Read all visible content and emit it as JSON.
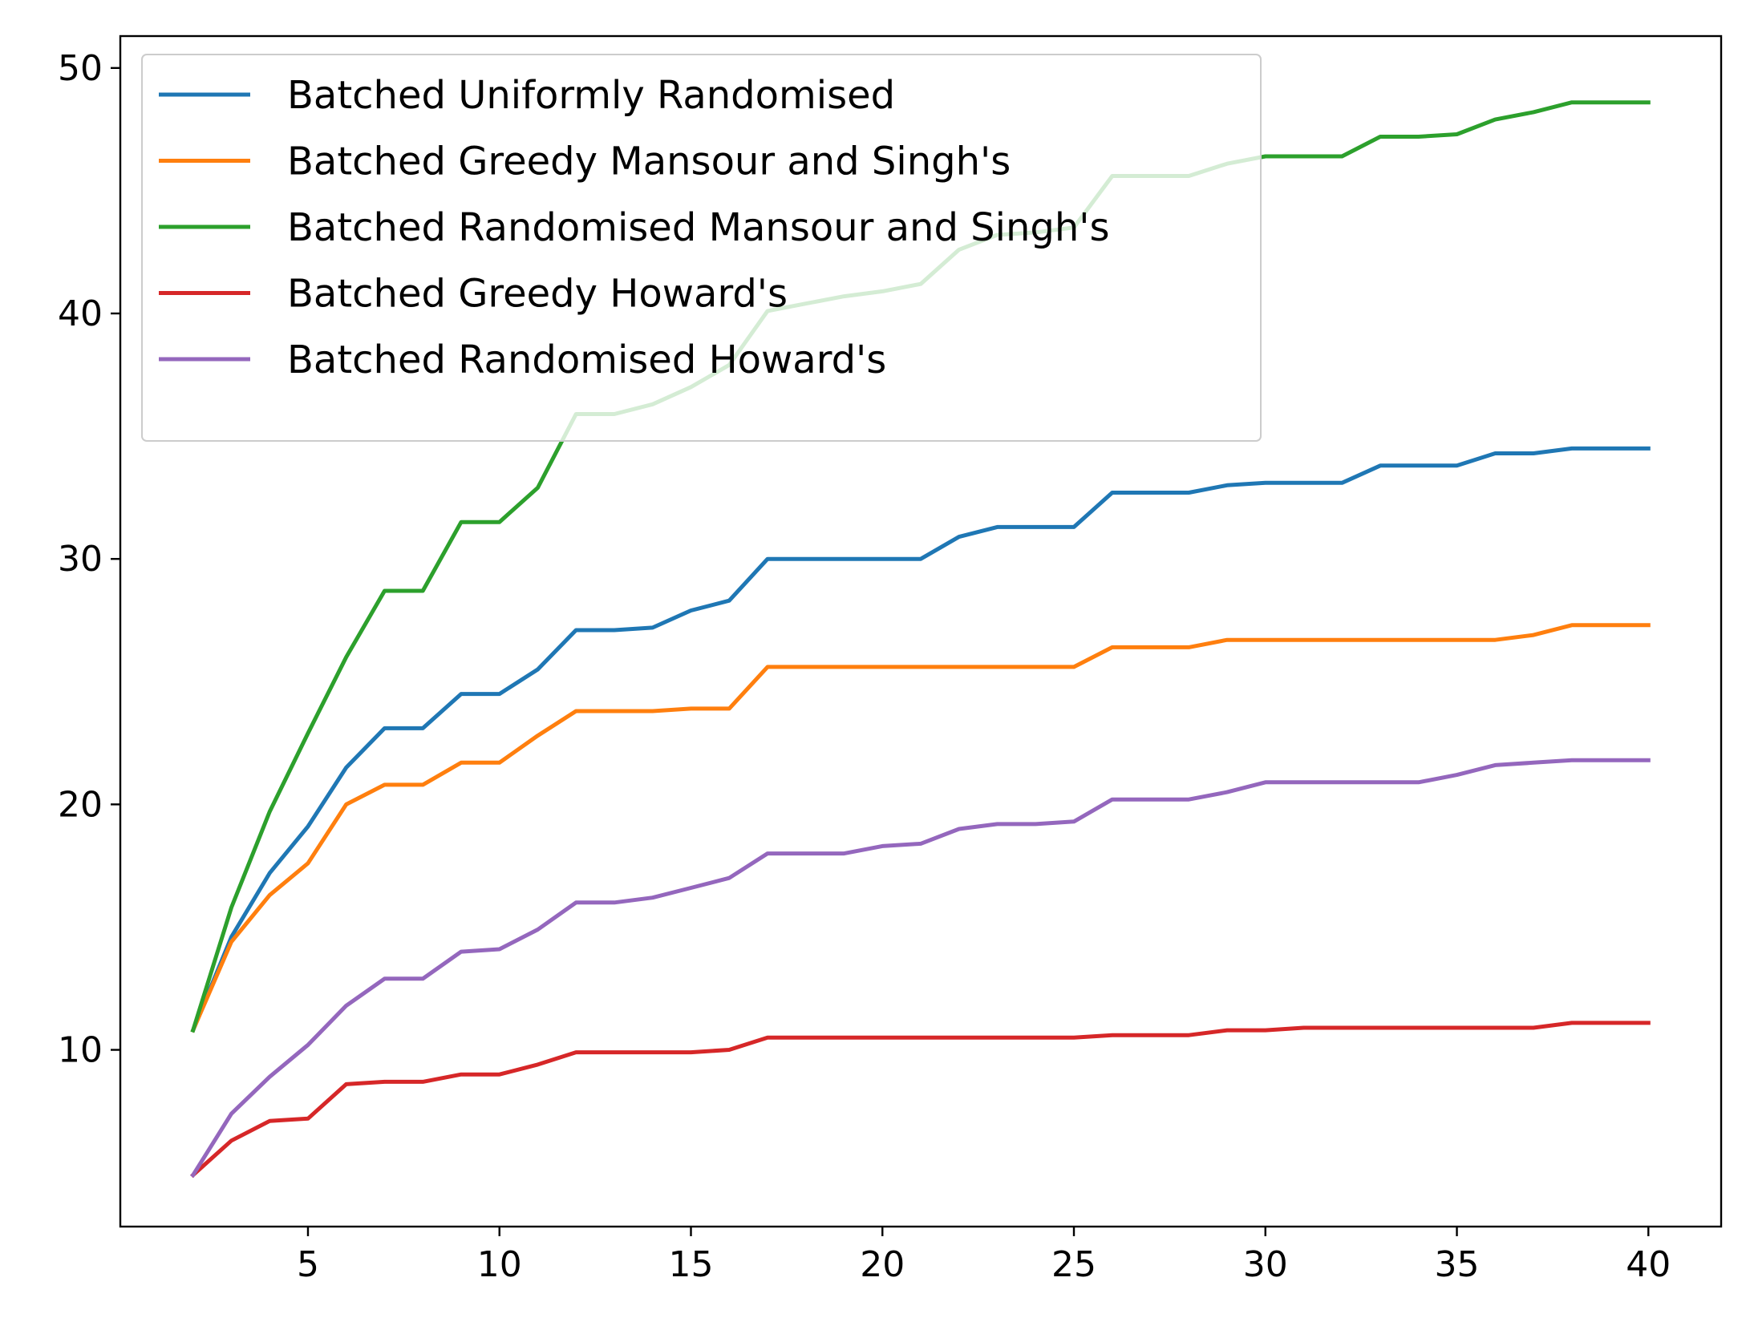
{
  "chart_data": {
    "type": "line",
    "title": "",
    "xlabel": "",
    "ylabel": "",
    "xlim": [
      0.1,
      41.9
    ],
    "ylim": [
      2.8,
      51.3
    ],
    "xticks": [
      5,
      10,
      15,
      20,
      25,
      30,
      35,
      40
    ],
    "yticks": [
      10,
      20,
      30,
      40,
      50
    ],
    "xtick_labels": [
      "5",
      "10",
      "15",
      "20",
      "25",
      "30",
      "35",
      "40"
    ],
    "ytick_labels": [
      "10",
      "20",
      "30",
      "40",
      "50"
    ],
    "grid": false,
    "legend_position": "top-left",
    "x": [
      2,
      3,
      4,
      5,
      6,
      7,
      8,
      9,
      10,
      11,
      12,
      13,
      14,
      15,
      16,
      17,
      18,
      19,
      20,
      21,
      22,
      23,
      24,
      25,
      26,
      27,
      28,
      29,
      30,
      31,
      32,
      33,
      34,
      35,
      36,
      37,
      38,
      39,
      40
    ],
    "series": [
      {
        "name": "Batched Uniformly Randomised",
        "color": "#1f77b4",
        "values": [
          10.8,
          14.6,
          17.2,
          19.1,
          21.5,
          23.1,
          23.1,
          24.5,
          24.5,
          25.5,
          27.1,
          27.1,
          27.2,
          27.9,
          28.3,
          30.0,
          30.0,
          30.0,
          30.0,
          30.0,
          30.9,
          31.3,
          31.3,
          31.3,
          32.7,
          32.7,
          32.7,
          33.0,
          33.1,
          33.1,
          33.1,
          33.8,
          33.8,
          33.8,
          34.3,
          34.3,
          34.5,
          34.5,
          34.5
        ]
      },
      {
        "name": "Batched Greedy Mansour and Singh's",
        "color": "#ff7f0e",
        "values": [
          10.8,
          14.4,
          16.3,
          17.6,
          20.0,
          20.8,
          20.8,
          21.7,
          21.7,
          22.8,
          23.8,
          23.8,
          23.8,
          23.9,
          23.9,
          25.6,
          25.6,
          25.6,
          25.6,
          25.6,
          25.6,
          25.6,
          25.6,
          25.6,
          26.4,
          26.4,
          26.4,
          26.7,
          26.7,
          26.7,
          26.7,
          26.7,
          26.7,
          26.7,
          26.7,
          26.9,
          27.3,
          27.3,
          27.3
        ]
      },
      {
        "name": "Batched Randomised Mansour and Singh's",
        "color": "#2ca02c",
        "values": [
          10.8,
          15.8,
          19.7,
          22.9,
          26.0,
          28.7,
          28.7,
          31.5,
          31.5,
          32.9,
          35.9,
          35.9,
          36.3,
          37.0,
          37.9,
          40.1,
          40.4,
          40.7,
          40.9,
          41.2,
          42.6,
          43.2,
          43.3,
          43.5,
          45.6,
          45.6,
          45.6,
          46.1,
          46.4,
          46.4,
          46.4,
          47.2,
          47.2,
          47.3,
          47.9,
          48.2,
          48.6,
          48.6,
          48.6
        ]
      },
      {
        "name": "Batched Greedy Howard's",
        "color": "#d62728",
        "values": [
          4.9,
          6.3,
          7.1,
          7.2,
          8.6,
          8.7,
          8.7,
          9.0,
          9.0,
          9.4,
          9.9,
          9.9,
          9.9,
          9.9,
          10.0,
          10.5,
          10.5,
          10.5,
          10.5,
          10.5,
          10.5,
          10.5,
          10.5,
          10.5,
          10.6,
          10.6,
          10.6,
          10.8,
          10.8,
          10.9,
          10.9,
          10.9,
          10.9,
          10.9,
          10.9,
          10.9,
          11.1,
          11.1,
          11.1
        ]
      },
      {
        "name": "Batched Randomised Howard's",
        "color": "#9467bd",
        "values": [
          4.9,
          7.4,
          8.9,
          10.2,
          11.8,
          12.9,
          12.9,
          14.0,
          14.1,
          14.9,
          16.0,
          16.0,
          16.2,
          16.6,
          17.0,
          18.0,
          18.0,
          18.0,
          18.3,
          18.4,
          19.0,
          19.2,
          19.2,
          19.3,
          20.2,
          20.2,
          20.2,
          20.5,
          20.9,
          20.9,
          20.9,
          20.9,
          20.9,
          21.2,
          21.6,
          21.7,
          21.8,
          21.8,
          21.8
        ]
      }
    ]
  }
}
